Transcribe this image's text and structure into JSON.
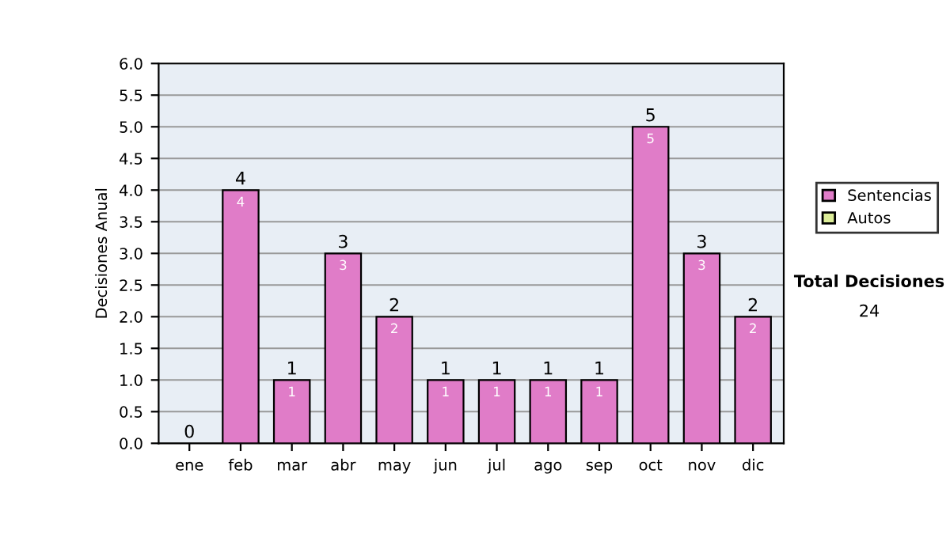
{
  "chart_data": {
    "type": "bar",
    "stacked": true,
    "ylabel": "Decisiones Anual",
    "categories": [
      "ene",
      "feb",
      "mar",
      "abr",
      "may",
      "jun",
      "jul",
      "ago",
      "sep",
      "oct",
      "nov",
      "dic"
    ],
    "series": [
      {
        "name": "Sentencias",
        "color": "#e07cc8",
        "values": [
          0,
          4,
          1,
          3,
          2,
          1,
          1,
          1,
          1,
          5,
          3,
          2
        ],
        "value_labels": [
          null,
          "4",
          "1",
          "3",
          "2",
          "1",
          "1",
          "1",
          "1",
          "5",
          "3",
          "2"
        ]
      },
      {
        "name": "Autos",
        "color": "#ddee99",
        "values": [
          0,
          0,
          0,
          0,
          0,
          0,
          0,
          0,
          0,
          0,
          0,
          0
        ]
      }
    ],
    "totals": [
      "0",
      "4",
      "1",
      "3",
      "2",
      "1",
      "1",
      "1",
      "1",
      "5",
      "3",
      "2"
    ],
    "ylim": [
      0,
      6
    ],
    "yticks": [
      {
        "value": 0,
        "label": "0.0"
      },
      {
        "value": 0.5,
        "label": "0.5"
      },
      {
        "value": 1,
        "label": "1.0"
      },
      {
        "value": 1.5,
        "label": "1.5"
      },
      {
        "value": 2,
        "label": "2.0"
      },
      {
        "value": 2.5,
        "label": "2.5"
      },
      {
        "value": 3,
        "label": "3.0"
      },
      {
        "value": 3.5,
        "label": "3.5"
      },
      {
        "value": 4,
        "label": "4.0"
      },
      {
        "value": 4.5,
        "label": "4.5"
      },
      {
        "value": 5,
        "label": "5.0"
      },
      {
        "value": 5.5,
        "label": "5.5"
      },
      {
        "value": 6,
        "label": "6.0"
      }
    ],
    "grid": "y",
    "legend": "right",
    "annotations": [
      "Total Decisiones",
      "24"
    ]
  }
}
